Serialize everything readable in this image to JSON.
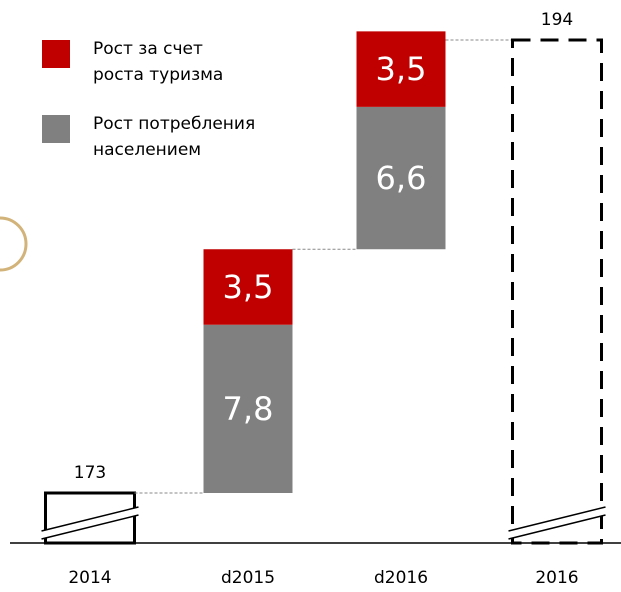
{
  "chart_data": {
    "type": "waterfall",
    "categories": [
      "2014",
      "d2015",
      "d2016",
      "2016"
    ],
    "totals": [
      173,
      null,
      null,
      194
    ],
    "total_line_styles": [
      "solid",
      null,
      null,
      "dashed"
    ],
    "series": [
      {
        "name": "Рост потребления населением",
        "color": "#808080",
        "values": [
          null,
          7.8,
          6.6,
          null
        ],
        "value_labels": [
          null,
          "7,8",
          "6,6",
          null
        ]
      },
      {
        "name": "Рост за счет роста туризма",
        "color": "#c00000",
        "values": [
          null,
          3.5,
          3.5,
          null
        ],
        "value_labels": [
          null,
          "3,5",
          "3,5",
          null
        ]
      }
    ]
  }
}
